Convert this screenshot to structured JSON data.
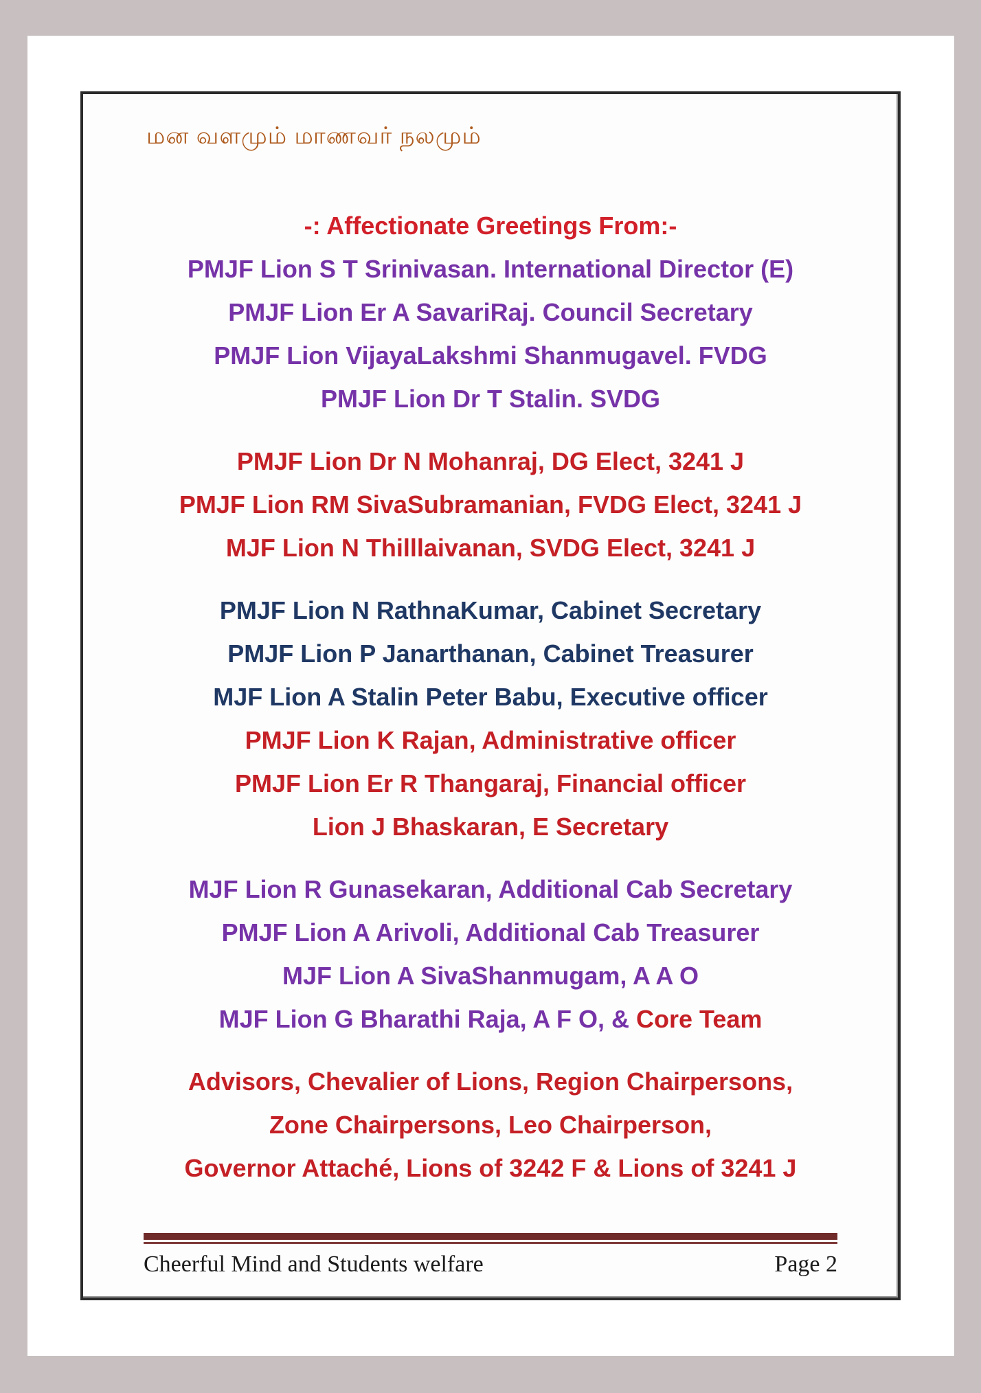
{
  "tamil_header": "மன வளமும் மாணவர் நலமும்",
  "colors": {
    "heading_red": "#D2202A",
    "red": "#C42026",
    "purple": "#7633A8",
    "blue": "#1F3864",
    "tamil_brown": "#AE5A1D",
    "rule_maroon": "#6F2B2A"
  },
  "blocks": [
    {
      "name": "greetings-intro-block",
      "lines": [
        {
          "segments": [
            {
              "text": "-: Affectionate Greetings From:-",
              "color": "heading_red"
            }
          ]
        },
        {
          "segments": [
            {
              "text": "PMJF Lion S T Srinivasan. International Director (E)",
              "color": "purple"
            }
          ]
        },
        {
          "segments": [
            {
              "text": "PMJF Lion Er A SavariRaj. Council Secretary",
              "color": "purple"
            }
          ]
        },
        {
          "segments": [
            {
              "text": "PMJF Lion VijayaLakshmi Shanmugavel. FVDG",
              "color": "purple"
            }
          ]
        },
        {
          "segments": [
            {
              "text": "PMJF Lion Dr T Stalin. SVDG",
              "color": "purple"
            }
          ]
        }
      ]
    },
    {
      "name": "dg-elect-block",
      "lines": [
        {
          "segments": [
            {
              "text": "PMJF Lion Dr N Mohanraj, DG Elect, 3241 J",
              "color": "red"
            }
          ]
        },
        {
          "segments": [
            {
              "text": "PMJF Lion RM SivaSubramanian, FVDG Elect, 3241 J",
              "color": "red"
            }
          ]
        },
        {
          "segments": [
            {
              "text": "MJF Lion N Thilllaivanan, SVDG Elect, 3241 J",
              "color": "red"
            }
          ]
        }
      ]
    },
    {
      "name": "cabinet-officers-block",
      "lines": [
        {
          "segments": [
            {
              "text": "PMJF Lion N RathnaKumar, Cabinet Secretary",
              "color": "blue"
            }
          ]
        },
        {
          "segments": [
            {
              "text": "PMJF Lion P Janarthanan, Cabinet Treasurer",
              "color": "blue"
            }
          ]
        },
        {
          "segments": [
            {
              "text": "MJF Lion A Stalin Peter Babu, Executive officer",
              "color": "blue"
            }
          ]
        },
        {
          "segments": [
            {
              "text": "PMJF Lion K Rajan, Administrative officer",
              "color": "red"
            }
          ]
        },
        {
          "segments": [
            {
              "text": "PMJF Lion Er R Thangaraj, Financial officer",
              "color": "red"
            }
          ]
        },
        {
          "segments": [
            {
              "text": "Lion J Bhaskaran, E Secretary",
              "color": "red"
            }
          ]
        }
      ]
    },
    {
      "name": "additional-officers-block",
      "lines": [
        {
          "segments": [
            {
              "text": "MJF Lion R Gunasekaran, Additional Cab Secretary",
              "color": "purple"
            }
          ]
        },
        {
          "segments": [
            {
              "text": "PMJF Lion A Arivoli, Additional Cab Treasurer",
              "color": "purple"
            }
          ]
        },
        {
          "segments": [
            {
              "text": "MJF Lion A SivaShanmugam, A A O",
              "color": "purple"
            }
          ]
        },
        {
          "segments": [
            {
              "text": "MJF Lion G Bharathi Raja, A F O, &",
              "color": "purple"
            },
            {
              "text": " Core Team",
              "color": "red"
            }
          ]
        }
      ]
    },
    {
      "name": "advisors-block",
      "lines": [
        {
          "segments": [
            {
              "text": "Advisors, Chevalier of Lions, Region Chairpersons,",
              "color": "red"
            }
          ]
        },
        {
          "segments": [
            {
              "text": "Zone Chairpersons, Leo Chairperson,",
              "color": "red"
            }
          ]
        },
        {
          "segments": [
            {
              "text": "Governor Attaché, Lions of 3242 F & Lions of 3241 J",
              "color": "red"
            }
          ]
        }
      ]
    }
  ],
  "footer": {
    "left": "Cheerful Mind and Students welfare",
    "right": "Page 2"
  }
}
